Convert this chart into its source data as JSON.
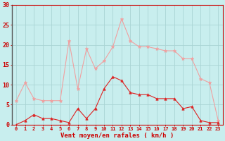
{
  "x": [
    0,
    1,
    2,
    3,
    4,
    5,
    6,
    7,
    8,
    9,
    10,
    11,
    12,
    13,
    14,
    15,
    16,
    17,
    18,
    19,
    20,
    21,
    22,
    23
  ],
  "vent_moyen": [
    0.0,
    1.0,
    2.5,
    1.5,
    1.5,
    1.0,
    0.5,
    4.0,
    1.5,
    4.0,
    9.0,
    12.0,
    11.0,
    8.0,
    7.5,
    7.5,
    6.5,
    6.5,
    6.5,
    4.0,
    4.5,
    1.0,
    0.5,
    0.5
  ],
  "rafales": [
    6.0,
    10.5,
    6.5,
    6.0,
    6.0,
    6.0,
    21.0,
    9.0,
    19.0,
    14.0,
    16.0,
    19.5,
    26.5,
    21.0,
    19.5,
    19.5,
    19.0,
    18.5,
    18.5,
    16.5,
    16.5,
    11.5,
    10.5,
    1.0
  ],
  "color_moyen": "#dd2222",
  "color_rafales": "#f0a0a0",
  "background_color": "#c8eeee",
  "grid_color": "#aad4d4",
  "xlabel": "Vent moyen/en rafales ( km/h )",
  "ylim": [
    0,
    30
  ],
  "xlim_min": -0.5,
  "xlim_max": 23.5,
  "yticks": [
    0,
    5,
    10,
    15,
    20,
    25,
    30
  ],
  "xticks": [
    0,
    1,
    2,
    3,
    4,
    5,
    6,
    7,
    8,
    9,
    10,
    11,
    12,
    13,
    14,
    15,
    16,
    17,
    18,
    19,
    20,
    21,
    22,
    23
  ],
  "tick_fontsize": 5,
  "xlabel_fontsize": 6.5,
  "ylabel_fontsize": 6,
  "spine_color": "#cc0000",
  "tick_color": "#cc0000",
  "label_color": "#cc0000"
}
